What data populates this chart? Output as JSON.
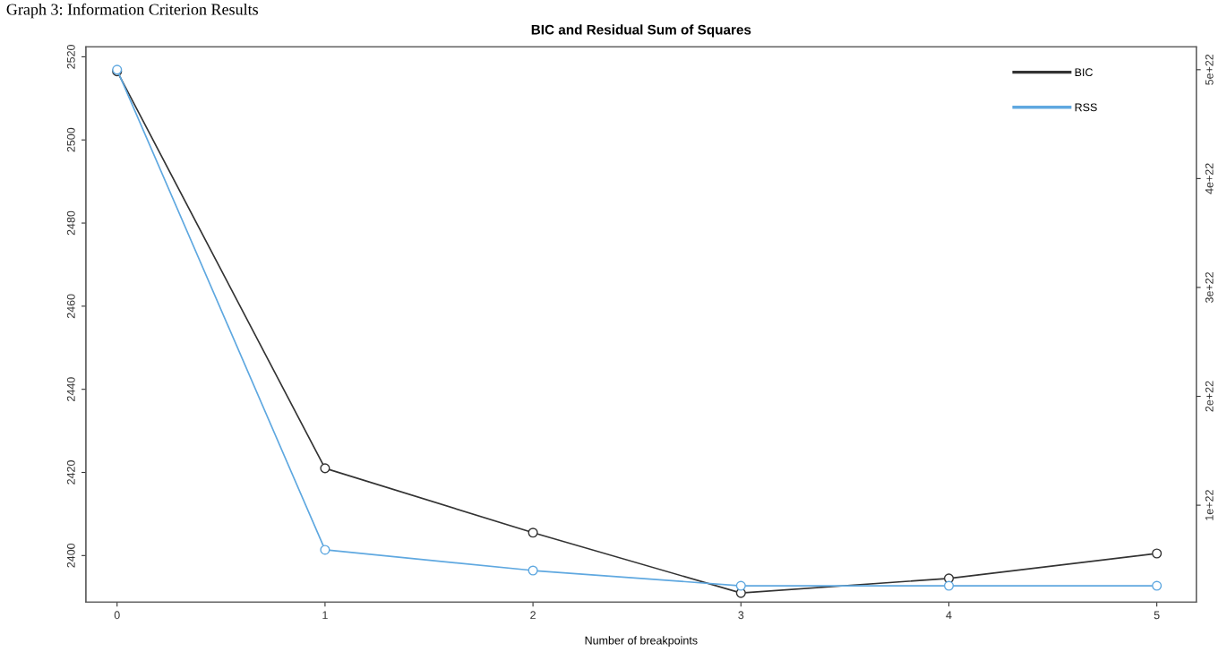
{
  "chart_data": {
    "type": "line",
    "title": "BIC and Residual Sum of Squares",
    "xlabel": "Number of breakpoints",
    "annotations": [
      "Graph 3: Information Criterion Results"
    ],
    "x": [
      0,
      1,
      2,
      3,
      4,
      5
    ],
    "series": [
      {
        "name": "BIC",
        "color": "#333333",
        "values": [
          2516.5,
          2421,
          2405.5,
          2391,
          2394.5,
          2400.5
        ]
      },
      {
        "name": "RSS",
        "color": "#5fa8e0",
        "axis": "y2",
        "values": [
          5e+22,
          5.9e+21,
          4e+21,
          2.6e+21,
          2.6e+21,
          2.6e+21
        ]
      }
    ],
    "xlim": [
      -0.15,
      5.19
    ],
    "xticks": [
      0,
      1,
      2,
      3,
      4,
      5
    ],
    "ylim": [
      2388.8,
      2522.4
    ],
    "yticks": [
      2400,
      2420,
      2440,
      2460,
      2480,
      2500,
      2520
    ],
    "y2lim": [
      1.1e+21,
      5.21e+22
    ],
    "y2ticks": [
      {
        "value": 1e+22,
        "label": "1e+22"
      },
      {
        "value": 2e+22,
        "label": "2e+22"
      },
      {
        "value": 3e+22,
        "label": "3e+22"
      },
      {
        "value": 4e+22,
        "label": "4e+22"
      },
      {
        "value": 5e+22,
        "label": "5e+22"
      }
    ],
    "marker": "circle",
    "line_style": "solid",
    "grid": false,
    "legend": "top right"
  }
}
